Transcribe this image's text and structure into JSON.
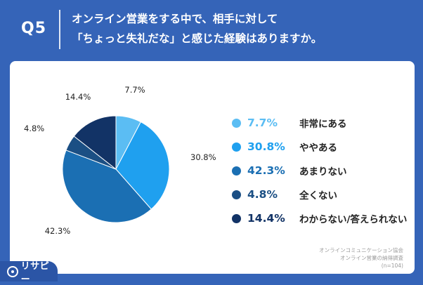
{
  "header": {
    "question": "Q5",
    "title_line1": "オンライン営業をする中で、相手に対して",
    "title_line2": "「ちょっと失礼だな」と感じた経験はありますか。"
  },
  "chart_data": {
    "type": "pie",
    "categories": [
      "非常にある",
      "ややある",
      "あまりない",
      "全くない",
      "わからない/答えられない"
    ],
    "values": [
      7.7,
      30.8,
      42.3,
      4.8,
      14.4
    ],
    "labels": [
      "7.7%",
      "30.8%",
      "42.3%",
      "4.8%",
      "14.4%"
    ],
    "colors": [
      "#5bbdf3",
      "#1fa0ef",
      "#1b6fb3",
      "#1b4f84",
      "#123366"
    ],
    "legend_position": "right",
    "title": "オンライン営業をする中で、相手に対して「ちょっと失礼だな」と感じた経験はありますか。"
  },
  "source": {
    "line1": "オンラインコミュニケーション協会",
    "line2": "オンライン営業の納得調査",
    "line3": "(n=104)"
  },
  "brand": {
    "name": "リサピー"
  }
}
